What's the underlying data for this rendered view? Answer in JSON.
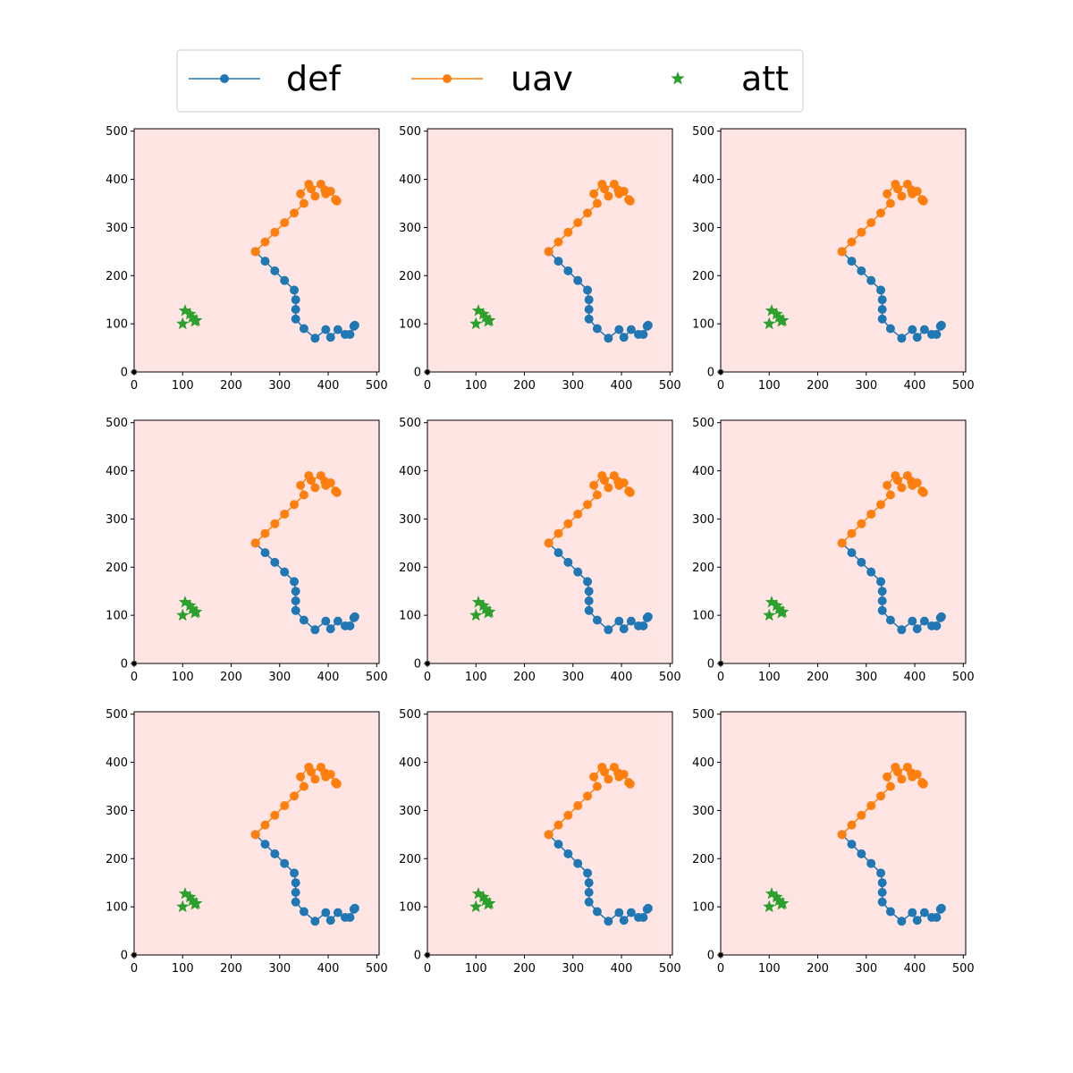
{
  "chart_data": {
    "type": "scatter",
    "grid": false,
    "legend_placement": "top-center",
    "background_color": "#ffe4e4",
    "legend": [
      {
        "name": "def",
        "color": "#1f77b4",
        "marker": "circle",
        "line": true
      },
      {
        "name": "uav",
        "color": "#ff7f0e",
        "marker": "circle",
        "line": true
      },
      {
        "name": "att",
        "color": "#2ca02c",
        "marker": "star",
        "line": false
      }
    ],
    "xlim": [
      0,
      505
    ],
    "ylim": [
      0,
      505
    ],
    "ticks": [
      0,
      100,
      200,
      300,
      400,
      500
    ],
    "tick_labels": [
      "0",
      "100",
      "200",
      "300",
      "400",
      "500"
    ],
    "panels": [
      {
        "id": "panel-1"
      },
      {
        "id": "panel-2"
      },
      {
        "id": "panel-3"
      },
      {
        "id": "panel-4"
      },
      {
        "id": "panel-5"
      },
      {
        "id": "panel-6"
      },
      {
        "id": "panel-7"
      },
      {
        "id": "panel-8"
      },
      {
        "id": "panel-9"
      }
    ],
    "series": {
      "def": {
        "color": "#1f77b4",
        "x": [
          250,
          270,
          290,
          310,
          330,
          333,
          333,
          333,
          350,
          373,
          395,
          405,
          420,
          435,
          445,
          453,
          455
        ],
        "y": [
          250,
          230,
          210,
          190,
          170,
          150,
          130,
          110,
          90,
          70,
          88,
          72,
          88,
          78,
          78,
          95,
          97
        ]
      },
      "uav": {
        "color": "#ff7f0e",
        "x": [
          250,
          270,
          290,
          310,
          330,
          350,
          343,
          360,
          373,
          365,
          385,
          393,
          395,
          405,
          415,
          418
        ],
        "y": [
          250,
          270,
          290,
          310,
          330,
          350,
          370,
          390,
          365,
          380,
          390,
          378,
          370,
          375,
          358,
          355
        ]
      },
      "att": {
        "color": "#2ca02c",
        "x": [
          100,
          105,
          115,
          120,
          125,
          128
        ],
        "y": [
          100,
          127,
          120,
          113,
          105,
          107
        ]
      },
      "origin": {
        "color": "#000000",
        "x": [
          0
        ],
        "y": [
          0
        ]
      }
    }
  }
}
